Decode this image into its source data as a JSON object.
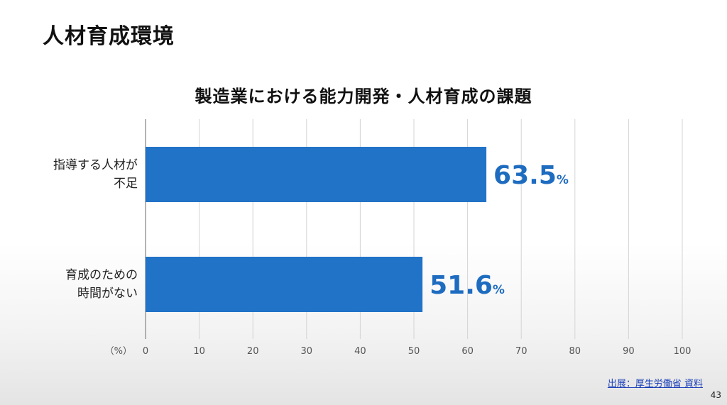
{
  "slide": {
    "title": "人材育成環境",
    "page_number": "43",
    "source_text": "出展：厚生労働省 資料"
  },
  "chart_data": {
    "type": "bar",
    "orientation": "horizontal",
    "title": "製造業における能力開発・人材育成の課題",
    "unit_label": "（%）",
    "categories": [
      [
        "指導する人材が",
        "不足"
      ],
      [
        "育成のための",
        "時間がない"
      ]
    ],
    "values": [
      63.5,
      51.6
    ],
    "value_labels": [
      "63.5",
      "51.6"
    ],
    "value_suffix": "%",
    "xlim": [
      0,
      100
    ],
    "ticks": [
      0,
      10,
      20,
      30,
      40,
      50,
      60,
      70,
      80,
      90,
      100
    ],
    "grid": true,
    "bar_color": "#2173c7",
    "value_color": "#1e6cc0",
    "grid_color": "#d4d4d4"
  }
}
